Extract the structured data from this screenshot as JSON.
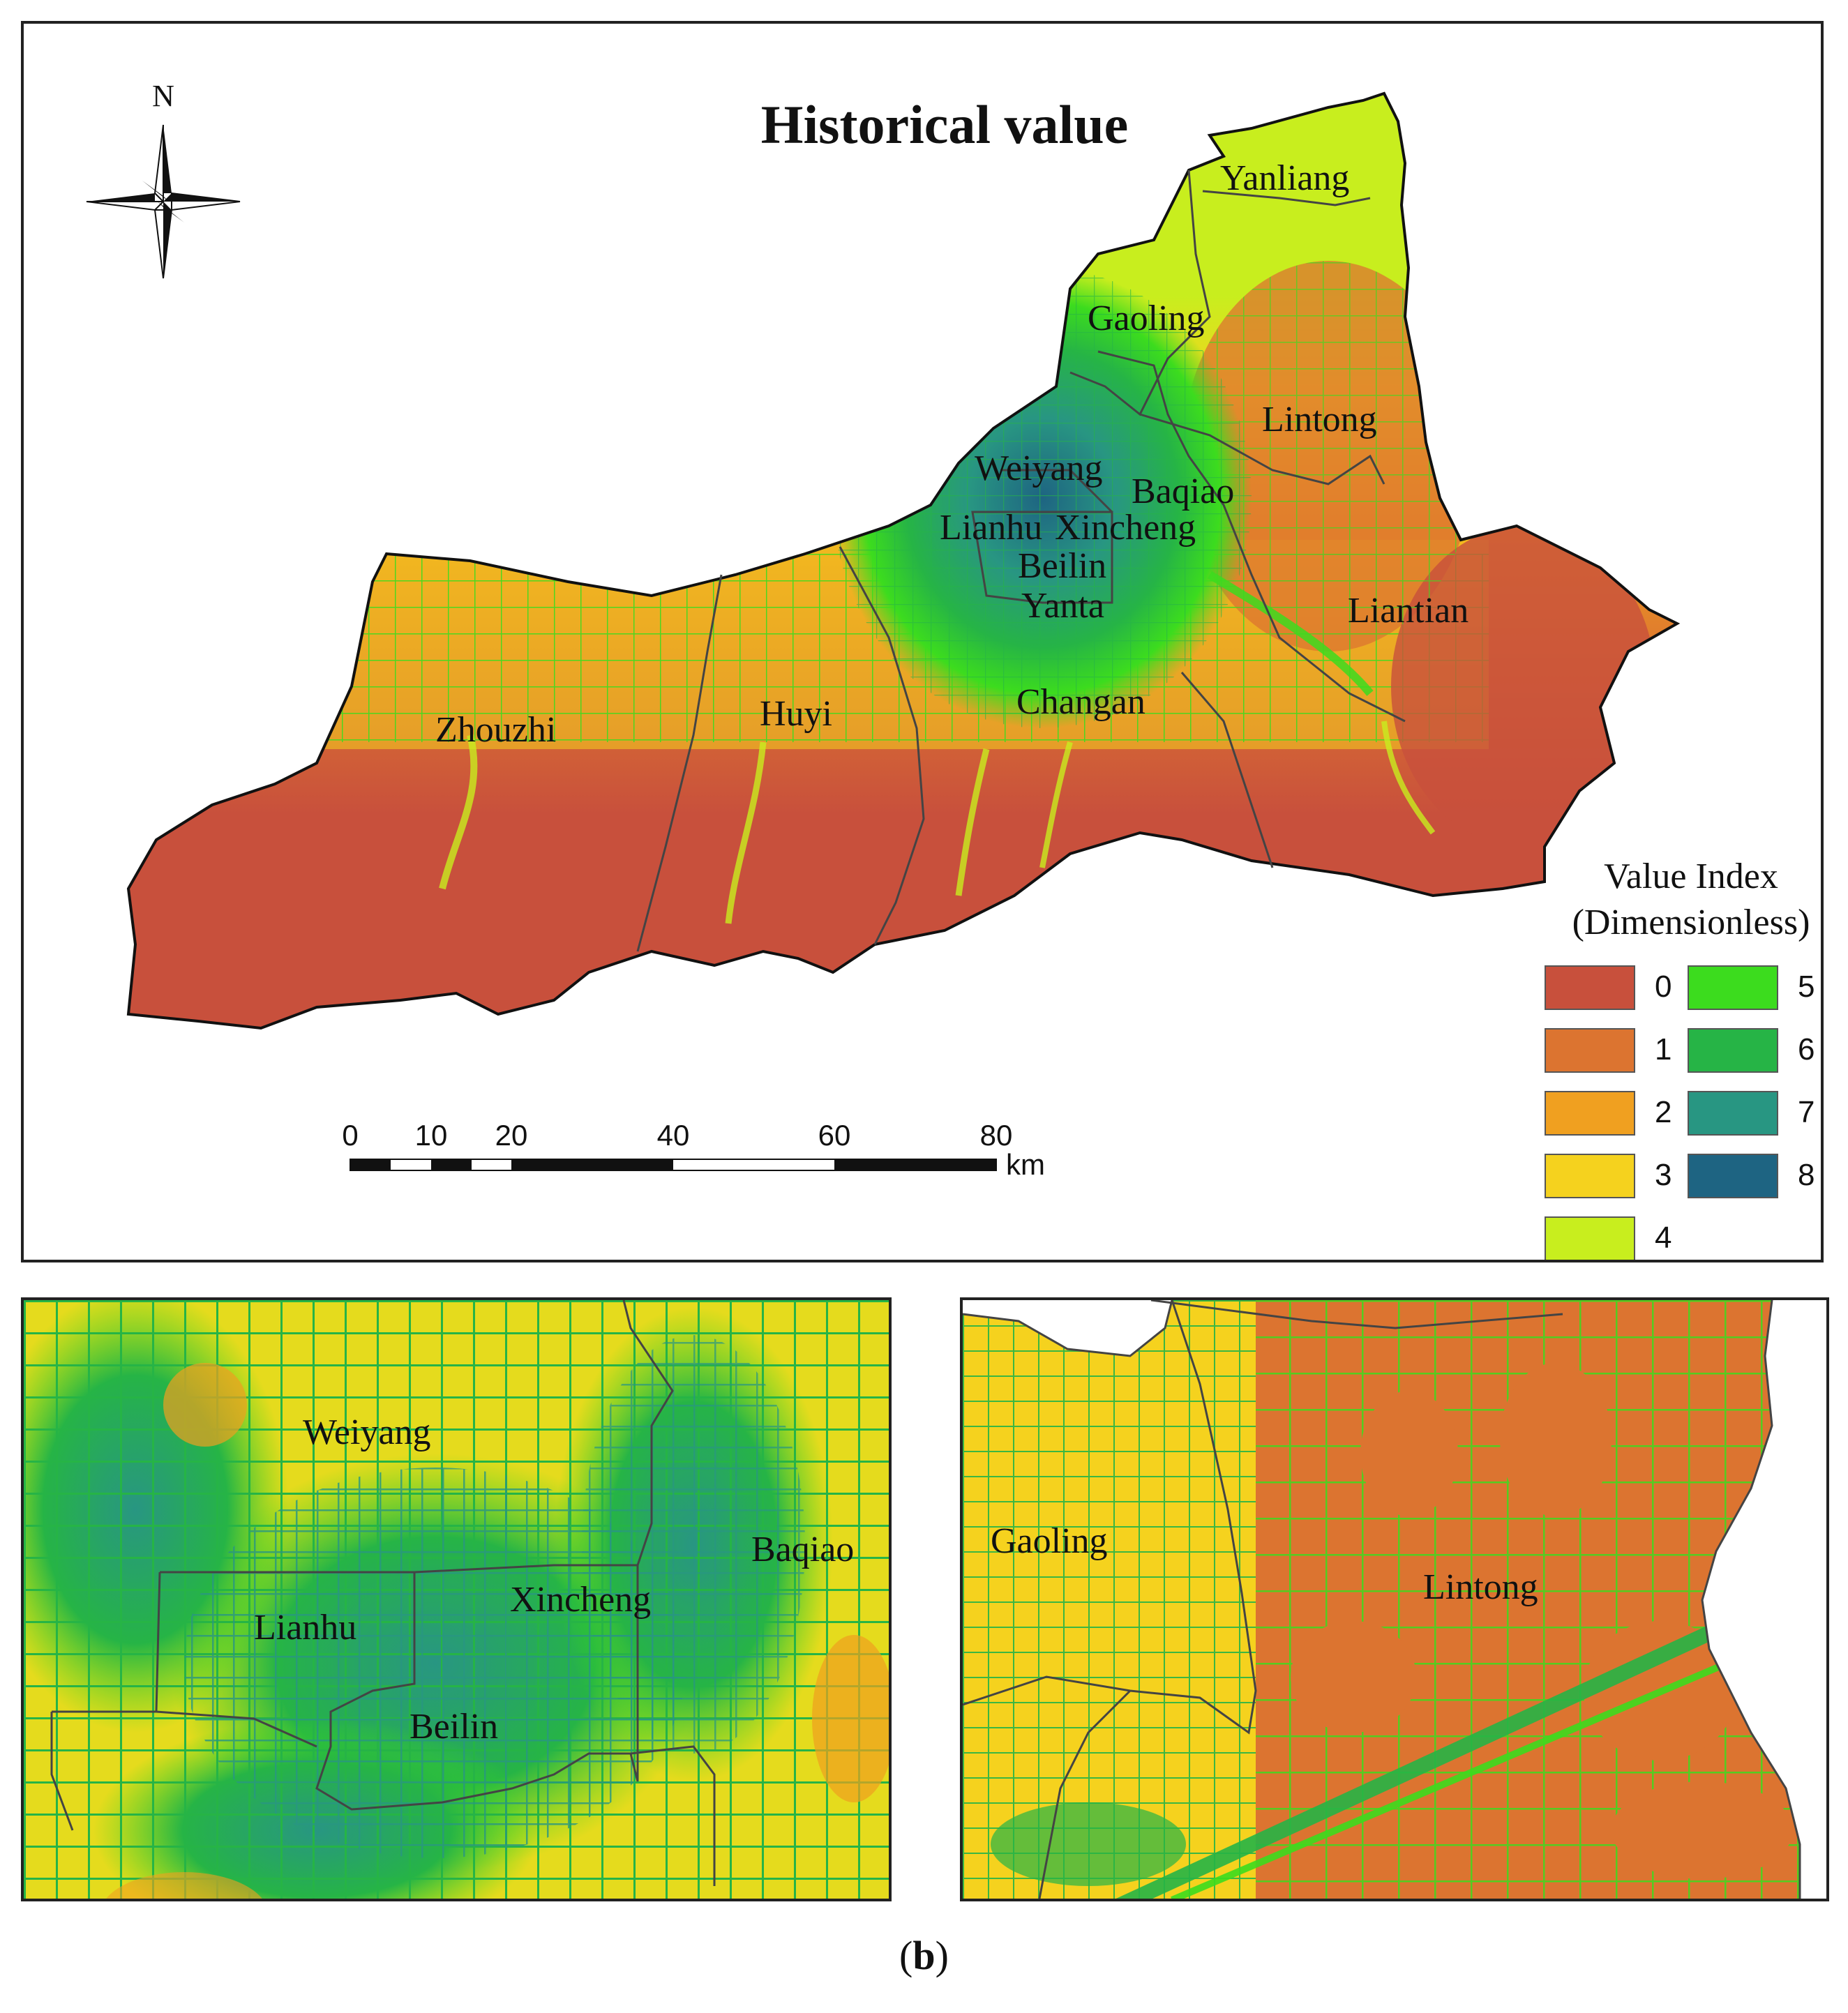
{
  "title": "Historical value",
  "north_label": "N",
  "regions_main": [
    {
      "id": "yanliang",
      "name": "Yanliang"
    },
    {
      "id": "gaoling",
      "name": "Gaoling"
    },
    {
      "id": "lintong",
      "name": "Lintong"
    },
    {
      "id": "weiyang",
      "name": "Weiyang"
    },
    {
      "id": "baqiao",
      "name": "Baqiao"
    },
    {
      "id": "lianhu",
      "name": "Lianhu"
    },
    {
      "id": "xincheng",
      "name": "Xincheng"
    },
    {
      "id": "beilin",
      "name": "Beilin"
    },
    {
      "id": "yanta",
      "name": "Yanta"
    },
    {
      "id": "liantian",
      "name": "Liantian"
    },
    {
      "id": "zhouzhi",
      "name": "Zhouzhi"
    },
    {
      "id": "huyi",
      "name": "Huyi"
    },
    {
      "id": "changan",
      "name": "Changan"
    }
  ],
  "legend": {
    "title_line1": "Value Index",
    "title_line2": "(Dimensionless)",
    "items": [
      {
        "label": "0",
        "color": "#c8503c"
      },
      {
        "label": "1",
        "color": "#dc7430"
      },
      {
        "label": "2",
        "color": "#f0a020"
      },
      {
        "label": "3",
        "color": "#f5d21e"
      },
      {
        "label": "4",
        "color": "#c8ee1e"
      },
      {
        "label": "5",
        "color": "#3cdc1e"
      },
      {
        "label": "6",
        "color": "#26b446"
      },
      {
        "label": "7",
        "color": "#289682"
      },
      {
        "label": "8",
        "color": "#1e6482"
      }
    ]
  },
  "scale_bar": {
    "ticks": [
      "0",
      "10",
      "20",
      "40",
      "60",
      "80"
    ],
    "unit": "km"
  },
  "inset_left": {
    "labels": [
      {
        "id": "weiyang",
        "name": "Weiyang"
      },
      {
        "id": "baqiao",
        "name": "Baqiao"
      },
      {
        "id": "lianhu",
        "name": "Lianhu"
      },
      {
        "id": "xincheng",
        "name": "Xincheng"
      },
      {
        "id": "beilin",
        "name": "Beilin"
      }
    ]
  },
  "inset_right": {
    "labels": [
      {
        "id": "gaoling",
        "name": "Gaoling"
      },
      {
        "id": "lintong",
        "name": "Lintong"
      }
    ]
  },
  "caption": {
    "open": "(",
    "letter": "b",
    "close": ")"
  }
}
